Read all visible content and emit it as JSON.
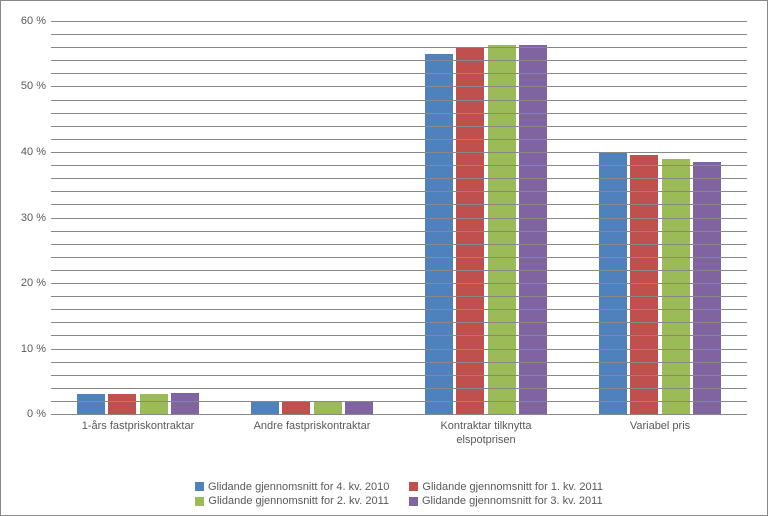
{
  "chart": {
    "type": "bar",
    "background_color": "#ffffff",
    "grid_color": "#888888",
    "axis_color": "#888888",
    "label_color": "#595959",
    "font_family": "Arial",
    "label_fontsize": 11,
    "categories": [
      "1-års fastpriskontraktar",
      "Andre fastpriskontraktar",
      "Kontraktar tilknytta elspotprisen",
      "Variabel pris"
    ],
    "series": [
      {
        "name": "Glidande gjennomsnitt for 4. kv. 2010",
        "color": "#4f81bd",
        "values": [
          3.0,
          2.0,
          55.0,
          40.0
        ]
      },
      {
        "name": "Glidande gjennomsnitt for 1. kv. 2011",
        "color": "#c0504d",
        "values": [
          3.0,
          2.0,
          56.0,
          39.5
        ]
      },
      {
        "name": "Glidande gjennomsnitt for 2. kv. 2011",
        "color": "#9bbb59",
        "values": [
          3.0,
          2.0,
          56.3,
          39.0
        ]
      },
      {
        "name": "Glidande gjennomsnitt for 3. kv. 2011",
        "color": "#8064a2",
        "values": [
          3.2,
          2.0,
          56.3,
          38.5
        ]
      }
    ],
    "y_axis": {
      "min": 0,
      "max": 60,
      "major_step": 10,
      "minor_step": 2,
      "format_suffix": " %"
    },
    "layout": {
      "group_width_pct": 22,
      "bar_width_pct": 4,
      "bar_gap_pct": 0.5
    },
    "legend": {
      "position": "bottom",
      "rows": [
        [
          0,
          1
        ],
        [
          2,
          3
        ]
      ]
    }
  }
}
